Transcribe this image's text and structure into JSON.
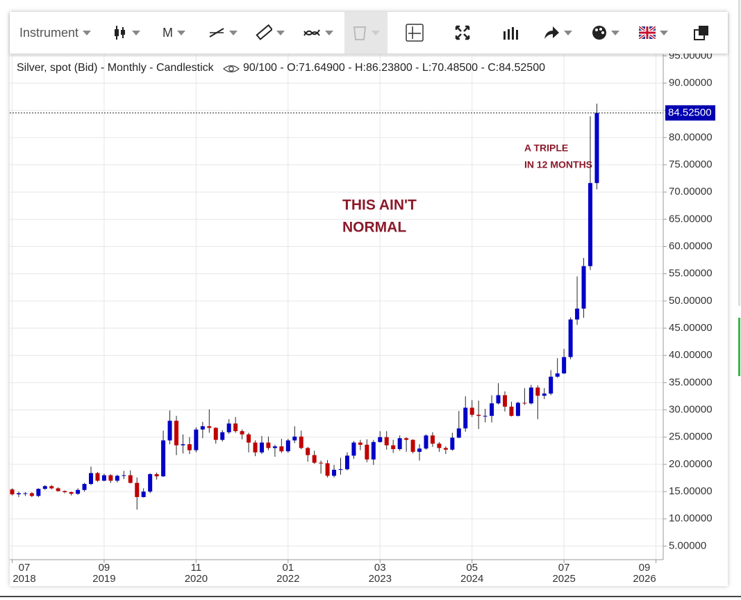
{
  "toolbar": {
    "instrument": "Instrument",
    "period": "M"
  },
  "chart_data": {
    "type": "candlestick",
    "legend_title": "Silver, spot (Bid) - Monthly - Candlestick",
    "legend_stats": "90/100 - O:71.64900 - H:86.23800 - L:70.48500 - C:84.52500",
    "last_price_label": "84.52500",
    "annotations": [
      {
        "lines": [
          "THIS AIN'T",
          "NORMAL"
        ]
      },
      {
        "lines": [
          "A TRIPLE",
          "IN 12 MONTHS"
        ]
      }
    ],
    "up_color": "#0000c8",
    "down_color": "#c00000",
    "wick_color": "#222222",
    "grid": true,
    "categories": [
      "2018-08",
      "2018-09",
      "2018-10",
      "2018-11",
      "2018-12",
      "2019-01",
      "2019-02",
      "2019-03",
      "2019-04",
      "2019-05",
      "2019-06",
      "2019-07",
      "2019-08",
      "2019-09",
      "2019-10",
      "2019-11",
      "2019-12",
      "2020-01",
      "2020-02",
      "2020-03",
      "2020-04",
      "2020-05",
      "2020-06",
      "2020-07",
      "2020-08",
      "2020-09",
      "2020-10",
      "2020-11",
      "2020-12",
      "2021-01",
      "2021-02",
      "2021-03",
      "2021-04",
      "2021-05",
      "2021-06",
      "2021-07",
      "2021-08",
      "2021-09",
      "2021-10",
      "2021-11",
      "2021-12",
      "2022-01",
      "2022-02",
      "2022-03",
      "2022-04",
      "2022-05",
      "2022-06",
      "2022-07",
      "2022-08",
      "2022-09",
      "2022-10",
      "2022-11",
      "2022-12",
      "2023-01",
      "2023-02",
      "2023-03",
      "2023-04",
      "2023-05",
      "2023-06",
      "2023-07",
      "2023-08",
      "2023-09",
      "2023-10",
      "2023-11",
      "2023-12",
      "2024-01",
      "2024-02",
      "2024-03",
      "2024-04",
      "2024-05",
      "2024-06",
      "2024-07",
      "2024-08",
      "2024-09",
      "2024-10",
      "2024-11",
      "2024-12",
      "2025-01",
      "2025-02",
      "2025-03",
      "2025-04",
      "2025-05",
      "2025-06",
      "2025-07",
      "2025-08",
      "2025-09",
      "2025-10",
      "2025-11",
      "2025-12",
      "2026-01"
    ],
    "open": [
      15.4,
      14.5,
      14.7,
      14.7,
      14.2,
      15.5,
      16.0,
      15.6,
      15.1,
      14.9,
      14.6,
      15.3,
      16.4,
      18.4,
      17.0,
      18.0,
      17.0,
      17.9,
      18.0,
      16.6,
      14.0,
      15.0,
      18.2,
      17.8,
      24.4,
      28.0,
      23.5,
      23.7,
      22.6,
      26.4,
      27.0,
      26.7,
      24.5,
      25.9,
      27.5,
      26.1,
      25.5,
      24.0,
      22.2,
      24.0,
      23.0,
      23.3,
      22.4,
      24.4,
      25.1,
      23.0,
      21.7,
      20.3,
      20.2,
      17.9,
      19.0,
      19.1,
      21.6,
      24.0,
      23.6,
      20.9,
      24.1,
      25.0,
      23.5,
      22.8,
      24.8,
      24.5,
      22.3,
      22.9,
      25.3,
      23.8,
      23.0,
      22.7,
      24.9,
      26.6,
      30.4,
      29.1,
      28.9,
      28.9,
      31.2,
      32.7,
      30.6,
      28.9,
      31.3,
      31.2,
      34.1,
      32.6,
      33.0,
      36.1,
      36.7,
      39.7,
      46.6,
      48.6,
      56.4,
      71.649
    ],
    "high": [
      15.6,
      15.0,
      14.9,
      14.9,
      15.6,
      16.2,
      16.2,
      15.8,
      15.2,
      15.0,
      15.6,
      16.6,
      19.6,
      18.6,
      18.3,
      18.2,
      18.1,
      18.8,
      18.9,
      17.6,
      15.6,
      18.4,
      18.5,
      26.2,
      29.9,
      28.9,
      25.5,
      25.0,
      26.8,
      27.8,
      30.1,
      26.8,
      26.3,
      28.3,
      28.7,
      26.4,
      25.8,
      24.4,
      25.2,
      25.1,
      23.6,
      24.7,
      24.7,
      27.0,
      26.2,
      23.2,
      22.5,
      20.7,
      20.8,
      19.9,
      21.2,
      22.2,
      24.3,
      24.5,
      24.6,
      24.5,
      26.1,
      26.1,
      24.5,
      25.3,
      25.0,
      24.6,
      23.7,
      25.5,
      25.9,
      24.1,
      23.3,
      25.8,
      29.8,
      32.5,
      31.8,
      31.7,
      30.2,
      32.7,
      34.9,
      33.4,
      31.5,
      31.5,
      34.0,
      34.6,
      34.5,
      34.0,
      37.3,
      39.5,
      41.2,
      47.0,
      54.5,
      57.9,
      83.9,
      86.238
    ],
    "low": [
      14.3,
      14.0,
      14.2,
      14.0,
      14.0,
      15.3,
      15.4,
      15.0,
      14.7,
      14.3,
      14.4,
      15.0,
      16.2,
      16.8,
      16.9,
      16.6,
      16.7,
      17.3,
      16.5,
      11.7,
      13.9,
      14.7,
      17.2,
      17.7,
      23.7,
      21.7,
      22.0,
      21.9,
      22.2,
      24.8,
      25.8,
      23.8,
      24.2,
      25.6,
      25.8,
      24.6,
      22.2,
      21.5,
      21.9,
      22.6,
      21.4,
      22.1,
      22.1,
      23.9,
      22.8,
      20.5,
      20.1,
      18.3,
      17.6,
      17.6,
      18.1,
      18.9,
      21.0,
      22.6,
      20.4,
      19.9,
      24.0,
      22.7,
      22.1,
      22.5,
      22.3,
      22.0,
      20.7,
      22.7,
      23.2,
      22.3,
      21.9,
      22.5,
      24.8,
      26.0,
      28.7,
      26.5,
      27.7,
      27.7,
      31.0,
      29.7,
      28.8,
      28.8,
      30.9,
      31.0,
      28.3,
      32.0,
      32.7,
      35.9,
      36.6,
      39.3,
      45.6,
      46.9,
      55.7,
      70.485
    ],
    "close": [
      14.5,
      14.7,
      14.7,
      14.2,
      15.5,
      16.0,
      15.6,
      15.1,
      14.9,
      14.6,
      15.3,
      16.4,
      18.4,
      17.0,
      18.0,
      17.0,
      17.9,
      18.0,
      16.6,
      14.0,
      15.0,
      18.2,
      17.8,
      24.4,
      28.0,
      23.5,
      23.7,
      22.6,
      26.4,
      27.0,
      26.7,
      24.5,
      25.9,
      27.5,
      26.1,
      25.5,
      24.0,
      22.2,
      24.0,
      23.0,
      23.3,
      22.4,
      24.4,
      25.1,
      23.0,
      21.7,
      20.3,
      20.2,
      17.9,
      19.0,
      19.1,
      21.6,
      24.0,
      23.6,
      20.9,
      24.1,
      25.0,
      23.5,
      22.8,
      24.8,
      24.5,
      22.3,
      22.9,
      25.3,
      23.8,
      23.0,
      22.7,
      24.9,
      26.6,
      30.4,
      29.1,
      28.9,
      28.9,
      31.2,
      32.7,
      30.6,
      28.9,
      31.3,
      31.2,
      34.1,
      32.6,
      33.0,
      36.1,
      36.7,
      39.7,
      46.6,
      48.6,
      56.4,
      71.649,
      84.525
    ],
    "ylim": [
      2.5,
      95.3
    ],
    "yticks": [
      {
        "value": 5,
        "label": "5.00000"
      },
      {
        "value": 10,
        "label": "10.00000"
      },
      {
        "value": 15,
        "label": "15.00000"
      },
      {
        "value": 20,
        "label": "20.00000"
      },
      {
        "value": 25,
        "label": "25.00000"
      },
      {
        "value": 30,
        "label": "30.00000"
      },
      {
        "value": 35,
        "label": "35.00000"
      },
      {
        "value": 40,
        "label": "40.00000"
      },
      {
        "value": 45,
        "label": "45.00000"
      },
      {
        "value": 50,
        "label": "50.00000"
      },
      {
        "value": 55,
        "label": "55.00000"
      },
      {
        "value": 60,
        "label": "60.00000"
      },
      {
        "value": 65,
        "label": "65.00000"
      },
      {
        "value": 70,
        "label": "70.00000"
      },
      {
        "value": 75,
        "label": "75.00000"
      },
      {
        "value": 80,
        "label": "80.00000"
      },
      {
        "value": 85,
        "label": "85.00000"
      },
      {
        "value": 90,
        "label": "90.00000"
      },
      {
        "value": 95,
        "label": "95.00000"
      }
    ],
    "xticks": [
      {
        "value": "2018-07",
        "label": [
          "07",
          "2018"
        ]
      },
      {
        "value": "2019-09",
        "label": [
          "09",
          "2019"
        ]
      },
      {
        "value": "2020-11",
        "label": [
          "11",
          "2020"
        ]
      },
      {
        "value": "2022-01",
        "label": [
          "01",
          "2022"
        ]
      },
      {
        "value": "2023-03",
        "label": [
          "03",
          "2023"
        ]
      },
      {
        "value": "2024-05",
        "label": [
          "05",
          "2024"
        ]
      },
      {
        "value": "2025-07",
        "label": [
          "07",
          "2025"
        ]
      },
      {
        "value": "2026-09",
        "label": [
          "09",
          "2026"
        ]
      }
    ]
  }
}
